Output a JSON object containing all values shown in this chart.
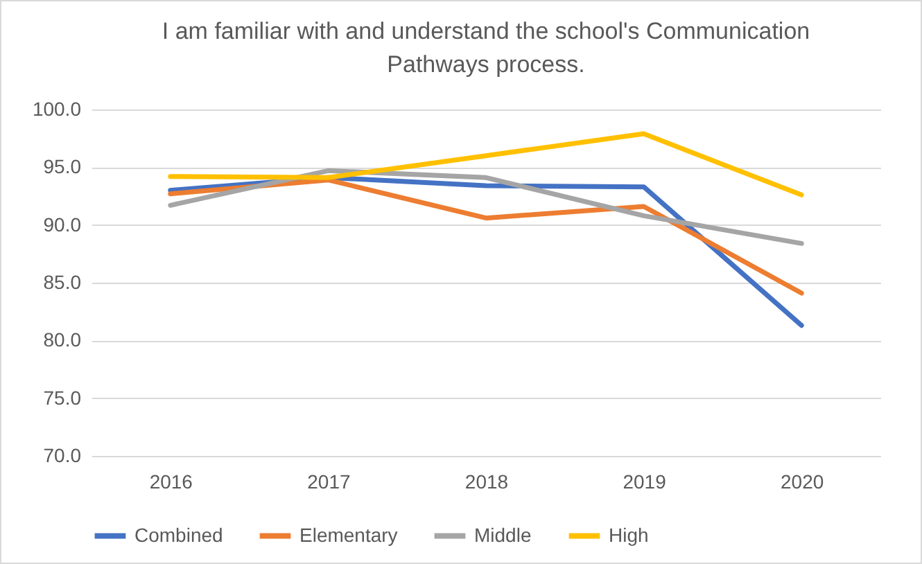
{
  "chart_data": {
    "type": "line",
    "title": "I am familiar with and understand the school's Communication Pathways process.",
    "categories": [
      "2016",
      "2017",
      "2018",
      "2019",
      "2020"
    ],
    "series": [
      {
        "name": "Combined",
        "color": "#4472c4",
        "values": [
          93.0,
          94.1,
          93.4,
          93.3,
          81.3
        ]
      },
      {
        "name": "Elementary",
        "color": "#ed7d31",
        "values": [
          92.7,
          93.9,
          90.6,
          91.6,
          84.1
        ]
      },
      {
        "name": "Middle",
        "color": "#a5a5a5",
        "values": [
          91.7,
          94.7,
          94.1,
          90.8,
          88.4
        ]
      },
      {
        "name": "High",
        "color": "#ffc000",
        "values": [
          94.2,
          94.1,
          96.0,
          97.9,
          92.6
        ]
      }
    ],
    "ylim": [
      70,
      100
    ],
    "yticks": [
      {
        "value": 70,
        "label": "70.0"
      },
      {
        "value": 75,
        "label": "75.0"
      },
      {
        "value": 80,
        "label": "80.0"
      },
      {
        "value": 85,
        "label": "85.0"
      },
      {
        "value": 90,
        "label": "90.0"
      },
      {
        "value": 95,
        "label": "95.0"
      },
      {
        "value": 100,
        "label": "100.0"
      }
    ],
    "grid": "y",
    "legend": "bottom",
    "marker": "none",
    "line_style": "solid"
  }
}
